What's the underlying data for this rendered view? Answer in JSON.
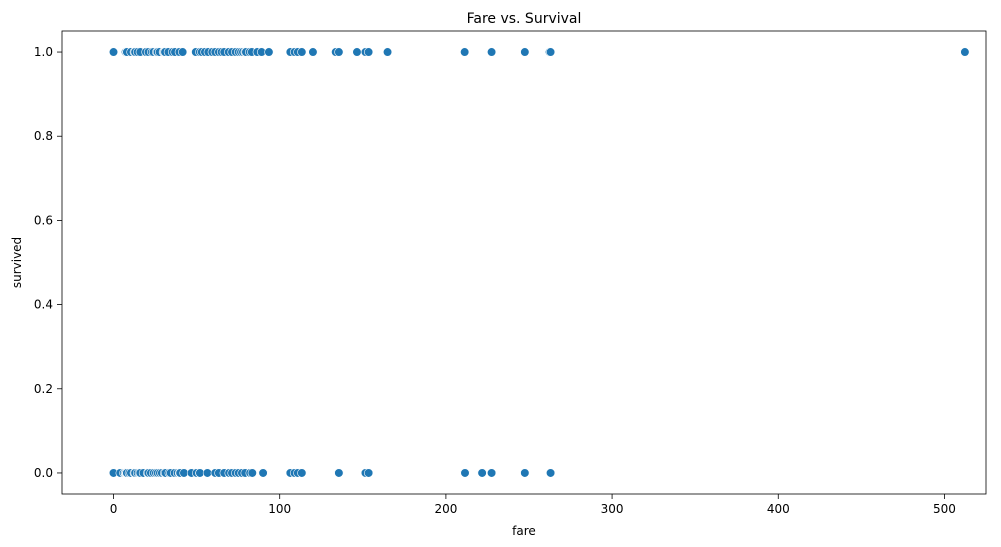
{
  "chart_data": {
    "type": "scatter",
    "title": "Fare vs. Survival",
    "xlabel": "fare",
    "ylabel": "survived",
    "xlim": [
      -31,
      525
    ],
    "ylim": [
      -0.05,
      1.05
    ],
    "xticks": [
      0,
      100,
      200,
      300,
      400,
      500
    ],
    "xtick_labels": [
      "0",
      "100",
      "200",
      "300",
      "400",
      "500"
    ],
    "yticks": [
      0.0,
      0.2,
      0.4,
      0.6,
      0.8,
      1.0
    ],
    "ytick_labels": [
      "0.0",
      "0.2",
      "0.4",
      "0.6",
      "0.8",
      "1.0"
    ],
    "grid": false,
    "marker_color": "#1f77b4",
    "marker_edge_color": "#ffffff",
    "series": [
      {
        "points": [
          [
            0,
            1
          ],
          [
            7.25,
            1
          ],
          [
            7.9,
            1
          ],
          [
            8.05,
            1
          ],
          [
            10.5,
            1
          ],
          [
            12.5,
            1
          ],
          [
            13,
            1
          ],
          [
            14.5,
            1
          ],
          [
            16.1,
            1
          ],
          [
            19.5,
            1
          ],
          [
            21,
            1
          ],
          [
            23,
            1
          ],
          [
            24,
            1
          ],
          [
            26,
            1
          ],
          [
            26.55,
            1
          ],
          [
            27.7,
            1
          ],
          [
            30,
            1
          ],
          [
            30.5,
            1
          ],
          [
            31,
            1
          ],
          [
            33,
            1
          ],
          [
            35.5,
            1
          ],
          [
            37,
            1
          ],
          [
            39.6,
            1
          ],
          [
            41.6,
            1
          ],
          [
            49.5,
            1
          ],
          [
            51.9,
            1
          ],
          [
            53.1,
            1
          ],
          [
            55,
            1
          ],
          [
            57,
            1
          ],
          [
            59.4,
            1
          ],
          [
            61.2,
            1
          ],
          [
            63.4,
            1
          ],
          [
            65,
            1
          ],
          [
            66.6,
            1
          ],
          [
            69.3,
            1
          ],
          [
            71.3,
            1
          ],
          [
            73.5,
            1
          ],
          [
            75.3,
            1
          ],
          [
            76.7,
            1
          ],
          [
            77.9,
            1
          ],
          [
            79.2,
            1
          ],
          [
            79.7,
            1
          ],
          [
            81.9,
            1
          ],
          [
            83.2,
            1
          ],
          [
            86.5,
            1
          ],
          [
            89.1,
            1
          ],
          [
            93.5,
            1
          ],
          [
            106.4,
            1
          ],
          [
            108.9,
            1
          ],
          [
            110.9,
            1
          ],
          [
            113.3,
            1
          ],
          [
            120,
            1
          ],
          [
            133.7,
            1
          ],
          [
            135.6,
            1
          ],
          [
            146.5,
            1
          ],
          [
            151.6,
            1
          ],
          [
            153.5,
            1
          ],
          [
            164.9,
            1
          ],
          [
            211.3,
            1
          ],
          [
            227.5,
            1
          ],
          [
            247.5,
            1
          ],
          [
            262.4,
            1
          ],
          [
            263,
            1
          ],
          [
            512.3,
            1
          ],
          [
            0,
            0
          ],
          [
            4,
            0
          ],
          [
            6.2,
            0
          ],
          [
            7.05,
            0
          ],
          [
            7.25,
            0
          ],
          [
            7.75,
            0
          ],
          [
            8.05,
            0
          ],
          [
            9.5,
            0
          ],
          [
            10.5,
            0
          ],
          [
            12.5,
            0
          ],
          [
            13,
            0
          ],
          [
            14.45,
            0
          ],
          [
            15.5,
            0
          ],
          [
            16.1,
            0
          ],
          [
            18,
            0
          ],
          [
            20.5,
            0
          ],
          [
            21,
            0
          ],
          [
            22.5,
            0
          ],
          [
            24.15,
            0
          ],
          [
            25.5,
            0
          ],
          [
            26.55,
            0
          ],
          [
            27.9,
            0
          ],
          [
            29.1,
            0
          ],
          [
            30.7,
            0
          ],
          [
            31.3,
            0
          ],
          [
            33.5,
            0
          ],
          [
            34.4,
            0
          ],
          [
            36.75,
            0
          ],
          [
            38.5,
            0
          ],
          [
            39.7,
            0
          ],
          [
            40.1,
            0
          ],
          [
            42.4,
            0
          ],
          [
            46.9,
            0
          ],
          [
            50,
            0
          ],
          [
            51.9,
            0
          ],
          [
            52,
            0
          ],
          [
            56.5,
            0
          ],
          [
            61.2,
            0
          ],
          [
            63.4,
            0
          ],
          [
            66.6,
            0
          ],
          [
            69.55,
            0
          ],
          [
            71.3,
            0
          ],
          [
            73.5,
            0
          ],
          [
            75.3,
            0
          ],
          [
            77.3,
            0
          ],
          [
            79.2,
            0
          ],
          [
            82.2,
            0
          ],
          [
            83.5,
            0
          ],
          [
            90,
            0
          ],
          [
            106.4,
            0
          ],
          [
            108.9,
            0
          ],
          [
            110.9,
            0
          ],
          [
            113.3,
            0
          ],
          [
            135.6,
            0
          ],
          [
            151.6,
            0
          ],
          [
            153.5,
            0
          ],
          [
            211.5,
            0
          ],
          [
            221.8,
            0
          ],
          [
            227.5,
            0
          ],
          [
            247.5,
            0
          ],
          [
            263,
            0
          ]
        ]
      }
    ]
  }
}
